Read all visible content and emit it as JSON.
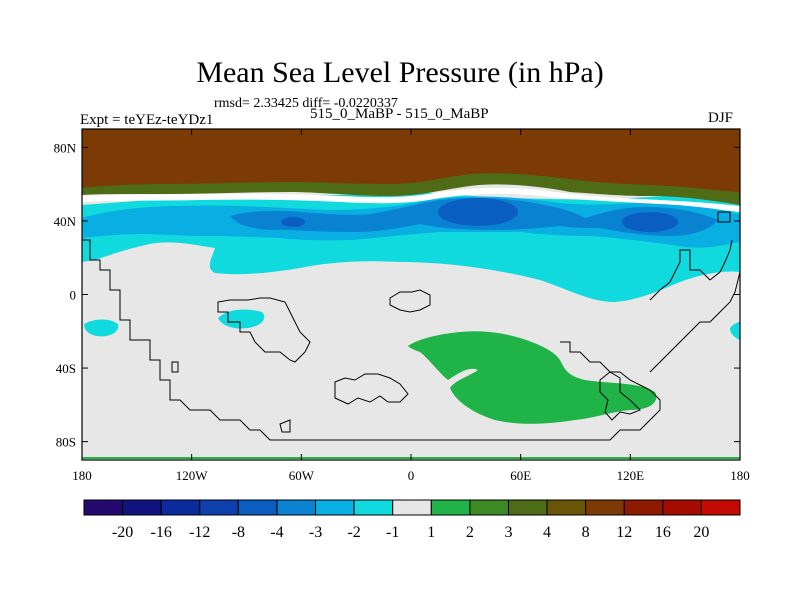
{
  "figure": {
    "title": "Mean Sea Level Pressure (in hPa)",
    "stats": "rmsd= 2.33425 diff= -0.0220337",
    "expt_label": "Expt = teYEz-teYDz1",
    "cases_label": "515_0_MaBP - 515_0_MaBP",
    "season": "DJF"
  },
  "chart_data": {
    "type": "heatmap",
    "title": "Mean Sea Level Pressure (in hPa)",
    "variable": "Mean sea level pressure difference",
    "units": "hPa",
    "xlim": [
      -180,
      180
    ],
    "ylim": [
      -90,
      90
    ],
    "xticks": [
      {
        "value": -180,
        "label": "180"
      },
      {
        "value": -120,
        "label": "120W"
      },
      {
        "value": -60,
        "label": "60W"
      },
      {
        "value": 0,
        "label": "0"
      },
      {
        "value": 60,
        "label": "60E"
      },
      {
        "value": 120,
        "label": "120E"
      },
      {
        "value": 180,
        "label": "180"
      }
    ],
    "yticks": [
      {
        "value": 80,
        "label": "80N"
      },
      {
        "value": 40,
        "label": "40N"
      },
      {
        "value": 0,
        "label": "0"
      },
      {
        "value": -40,
        "label": "40S"
      },
      {
        "value": -80,
        "label": "80S"
      }
    ],
    "colorbar": {
      "levels": [
        "-20",
        "-16",
        "-12",
        "-8",
        "-4",
        "-3",
        "-2",
        "-1",
        "1",
        "2",
        "3",
        "4",
        "8",
        "12",
        "16",
        "20"
      ],
      "colors": [
        "#240a6e",
        "#12137e",
        "#0b2a9e",
        "#0d40ac",
        "#0a5ec2",
        "#0b82d2",
        "#09aee2",
        "#10dade",
        "#e7e7e7",
        "#1fb348",
        "#3d8a25",
        "#4e6c16",
        "#6a5408",
        "#7c3a04",
        "#8f1a02",
        "#a40c02",
        "#c40a03"
      ]
    },
    "fields": [
      {
        "name": "Polar high band",
        "value": 8,
        "bin": "8 to 12",
        "lat_range": [
          62,
          90
        ],
        "lon_range": [
          -180,
          180
        ]
      },
      {
        "name": "Transition band",
        "value": 3.5,
        "bin": "3 to 4",
        "lat_range": [
          52,
          62
        ],
        "lon_range": [
          -180,
          180
        ]
      },
      {
        "name": "Midlatitude low band",
        "value": -1.5,
        "bin": "-2 to -1",
        "lat_range": [
          0,
          48
        ],
        "lon_range": [
          -180,
          180
        ]
      },
      {
        "name": "Midlatitude deep low",
        "value": -3.5,
        "bin": "-4 to -3",
        "lat_range": [
          30,
          50
        ],
        "lon_range": [
          -180,
          180
        ]
      },
      {
        "name": "Low center near 40E",
        "value": -5,
        "bin": "-8 to -4",
        "lat": 43,
        "lon": 40
      },
      {
        "name": "Low center near 125E",
        "value": -5,
        "bin": "-8 to -4",
        "lat": 36,
        "lon": 125
      },
      {
        "name": "Low center near 60W",
        "value": -5,
        "bin": "-8 to -4",
        "lat": 40,
        "lon": -62
      },
      {
        "name": "Southern high anomaly",
        "value": 1.5,
        "bin": "1 to 2",
        "lat_range": [
          -70,
          -25
        ],
        "lon_range": [
          5,
          140
        ]
      }
    ]
  }
}
